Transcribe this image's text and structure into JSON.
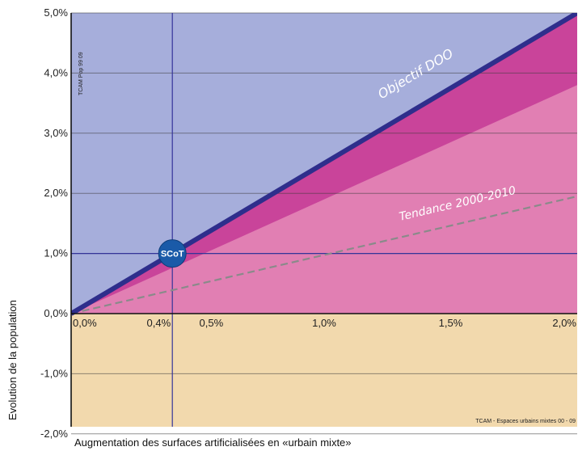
{
  "chart_data": {
    "type": "area",
    "xlabel": "Augmentation des surfaces artificialisées en «urbain mixte»",
    "ylabel": "Evolution de la population",
    "xlim": [
      0,
      2.0
    ],
    "ylim": [
      -2.0,
      5.0
    ],
    "x_ticks": [
      {
        "value": 0.0,
        "label": "0,0%"
      },
      {
        "value": 0.4,
        "label": "0,4%"
      },
      {
        "value": 0.5,
        "label": "0,5%"
      },
      {
        "value": 1.0,
        "label": "1,0%"
      },
      {
        "value": 1.5,
        "label": "1,5%"
      },
      {
        "value": 2.0,
        "label": "2,0%"
      }
    ],
    "y_ticks": [
      {
        "value": 5.0,
        "label": "5,0%"
      },
      {
        "value": 4.0,
        "label": "4,0%"
      },
      {
        "value": 3.0,
        "label": "3,0%"
      },
      {
        "value": 2.0,
        "label": "2,0%"
      },
      {
        "value": 1.0,
        "label": "1,0%"
      },
      {
        "value": 0.0,
        "label": "0,0%"
      },
      {
        "value": -1.0,
        "label": "-1,0%"
      },
      {
        "value": -2.0,
        "label": "-2,0%"
      }
    ],
    "grid": true,
    "series": [
      {
        "name": "Objectif DOO",
        "style": "line",
        "color": "#2e2e8c",
        "x": [
          0.0,
          2.0
        ],
        "y": [
          0.0,
          5.0
        ]
      },
      {
        "name": "Tendance 2000-2010",
        "style": "dashed-line",
        "color": "#8a8a8a",
        "x": [
          0.0,
          2.0
        ],
        "y": [
          0.0,
          1.95
        ]
      }
    ],
    "bands": [
      {
        "color": "#c9449a",
        "x": [
          0.0,
          2.0
        ],
        "y": [
          0.0,
          3.8
        ]
      }
    ],
    "regions": {
      "above_target_color": "#a6aedb",
      "below_target_color": "#e17fb3",
      "negative_color": "#f2d9ad"
    },
    "reference_lines": [
      {
        "axis": "x",
        "value": 0.4
      },
      {
        "axis": "y",
        "value": 1.0
      }
    ],
    "point": {
      "label": "SCoT",
      "x": 0.4,
      "y": 1.0,
      "color": "#1a5aa8"
    },
    "annotations": {
      "y_axis_note": "TCAM Pop 99 09",
      "x_axis_note": "TCAM - Espaces urbains mixtes 00 - 09"
    }
  }
}
